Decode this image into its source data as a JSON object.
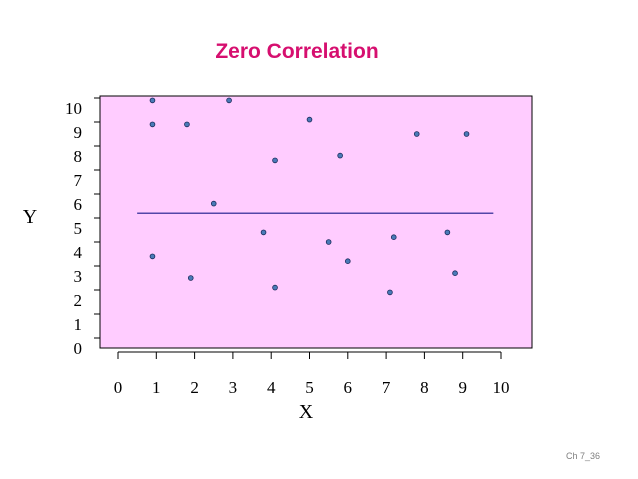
{
  "slide": {
    "footer": "Ch 7_36"
  },
  "colors": {
    "plot_background": "#ffccff",
    "title": "#d60f6f",
    "points": "#4a7ab8",
    "line": "#1a1a8c"
  },
  "chart_data": {
    "type": "scatter",
    "title": "Zero Correlation",
    "xlabel": "X",
    "ylabel": "Y",
    "xlim": [
      0,
      10
    ],
    "ylim": [
      0,
      10
    ],
    "xticks": [
      "0",
      "1",
      "2",
      "3",
      "4",
      "5",
      "6",
      "7",
      "8",
      "9",
      "10"
    ],
    "yticks": [
      "0",
      "1",
      "2",
      "3",
      "4",
      "5",
      "6",
      "7",
      "8",
      "9",
      "10"
    ],
    "grid": false,
    "points": [
      {
        "x": 0.9,
        "y": 9.9
      },
      {
        "x": 2.9,
        "y": 9.9
      },
      {
        "x": 0.9,
        "y": 8.9
      },
      {
        "x": 1.8,
        "y": 8.9
      },
      {
        "x": 5.0,
        "y": 9.1
      },
      {
        "x": 7.8,
        "y": 8.5
      },
      {
        "x": 9.1,
        "y": 8.5
      },
      {
        "x": 4.1,
        "y": 7.4
      },
      {
        "x": 5.8,
        "y": 7.6
      },
      {
        "x": 2.5,
        "y": 5.6
      },
      {
        "x": 3.8,
        "y": 4.4
      },
      {
        "x": 5.5,
        "y": 4.0
      },
      {
        "x": 7.2,
        "y": 4.2
      },
      {
        "x": 8.6,
        "y": 4.4
      },
      {
        "x": 0.9,
        "y": 3.4
      },
      {
        "x": 6.0,
        "y": 3.2
      },
      {
        "x": 8.8,
        "y": 2.7
      },
      {
        "x": 1.9,
        "y": 2.5
      },
      {
        "x": 4.1,
        "y": 2.1
      },
      {
        "x": 7.1,
        "y": 1.9
      }
    ],
    "trend_line": {
      "x": [
        0.5,
        9.8
      ],
      "y": [
        5.2,
        5.2
      ]
    }
  }
}
